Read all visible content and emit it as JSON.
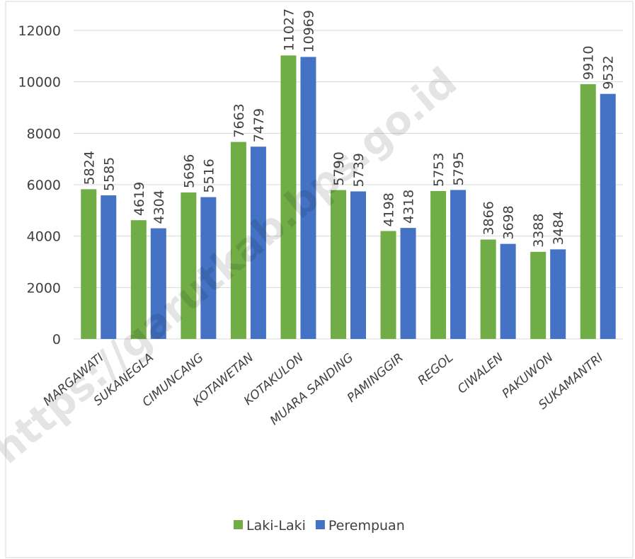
{
  "chart_data": {
    "type": "bar",
    "categories": [
      "MARGAWATI",
      "SUKANEGLA",
      "CIMUNCANG",
      "KOTAWETAN",
      "KOTAKULON",
      "MUARA SANDING",
      "PAMINGGIR",
      "REGOL",
      "CIWALEN",
      "PAKUWON",
      "SUKAMANTRI"
    ],
    "series": [
      {
        "name": "Laki-Laki",
        "color": "#70ad47",
        "values": [
          5824,
          4619,
          5696,
          7663,
          11027,
          5790,
          4198,
          5753,
          3866,
          3388,
          9910
        ]
      },
      {
        "name": "Perempuan",
        "color": "#4472c4",
        "values": [
          5585,
          4304,
          5516,
          7479,
          10969,
          5739,
          4318,
          5795,
          3698,
          3484,
          9532
        ]
      }
    ],
    "ylim": [
      0,
      12000
    ],
    "yticks": [
      0,
      2000,
      4000,
      6000,
      8000,
      10000,
      12000
    ],
    "grid": true,
    "legend": "bottom",
    "watermark": "https://garutkab.bps.go.id"
  }
}
